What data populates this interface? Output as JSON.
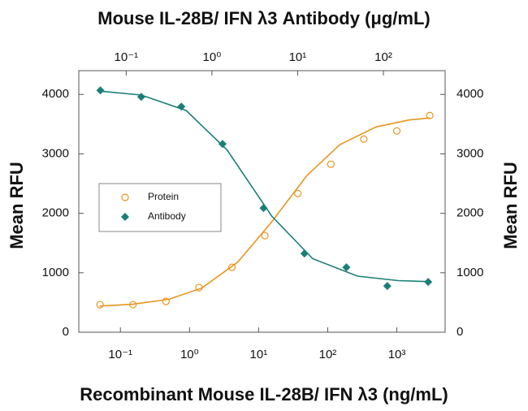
{
  "chart_data": {
    "type": "scatter",
    "title": "Mouse IL-28B/ IFN λ3 Antibody (μg/mL)",
    "x_label": "Recombinant Mouse IL-28B/ IFN λ3  (ng/mL)",
    "y_label": "Mean RFU",
    "y2_label": "Mean RFU",
    "xscale": "log",
    "x2scale": "log",
    "xlim": [
      0.025,
      5000
    ],
    "xticks": [
      {
        "value": 0.1,
        "label": "10⁻¹"
      },
      {
        "value": 1,
        "label": "10⁰"
      },
      {
        "value": 10,
        "label": "10¹"
      },
      {
        "value": 100,
        "label": "10²"
      },
      {
        "value": 1000,
        "label": "10³"
      }
    ],
    "x2lim": [
      0.028,
      525
    ],
    "x2ticks": [
      {
        "value": 0.1,
        "label": "10⁻¹"
      },
      {
        "value": 1,
        "label": "10⁰"
      },
      {
        "value": 10,
        "label": "10¹"
      },
      {
        "value": 100,
        "label": "10²"
      }
    ],
    "ylim": [
      0,
      4400
    ],
    "yticks": [
      0,
      1000,
      2000,
      3000,
      4000
    ],
    "y2lim": [
      0,
      4400
    ],
    "y2ticks": [
      0,
      1000,
      2000,
      3000,
      4000
    ],
    "legend": "middle-left",
    "series": [
      {
        "name": "Protein",
        "color": "#e8951e",
        "marker": "circle-open",
        "xaxis": "x",
        "x": [
          0.0508,
          0.152,
          0.457,
          1.37,
          4.12,
          12.3,
          37,
          111,
          333,
          1000,
          3000
        ],
        "values": [
          464,
          464,
          519,
          751,
          1092,
          1625,
          2334,
          2826,
          3249,
          3386,
          3645
        ]
      },
      {
        "name": "Antibody",
        "color": "#1a7f76",
        "marker": "diamond",
        "xaxis": "x2",
        "x": [
          0.05,
          0.15,
          0.44,
          1.33,
          4,
          12,
          37,
          111,
          333
        ],
        "values": [
          4068,
          3959,
          3795,
          3167,
          2089,
          1324,
          1092,
          778,
          846
        ]
      }
    ],
    "fits": [
      {
        "color": "#e8951e",
        "xaxis": "x",
        "x": [
          0.05,
          0.15,
          0.5,
          1.5,
          5,
          15,
          50,
          150,
          500,
          1500,
          3000
        ],
        "values": [
          440,
          470,
          554,
          742,
          1180,
          1838,
          2634,
          3157,
          3453,
          3570,
          3605
        ]
      },
      {
        "color": "#1a7f76",
        "xaxis": "x2",
        "x": [
          0.05,
          0.15,
          0.5,
          1.5,
          5,
          15,
          50,
          150,
          330
        ],
        "values": [
          4055,
          3990,
          3730,
          3068,
          1950,
          1236,
          943,
          868,
          851
        ]
      }
    ]
  }
}
